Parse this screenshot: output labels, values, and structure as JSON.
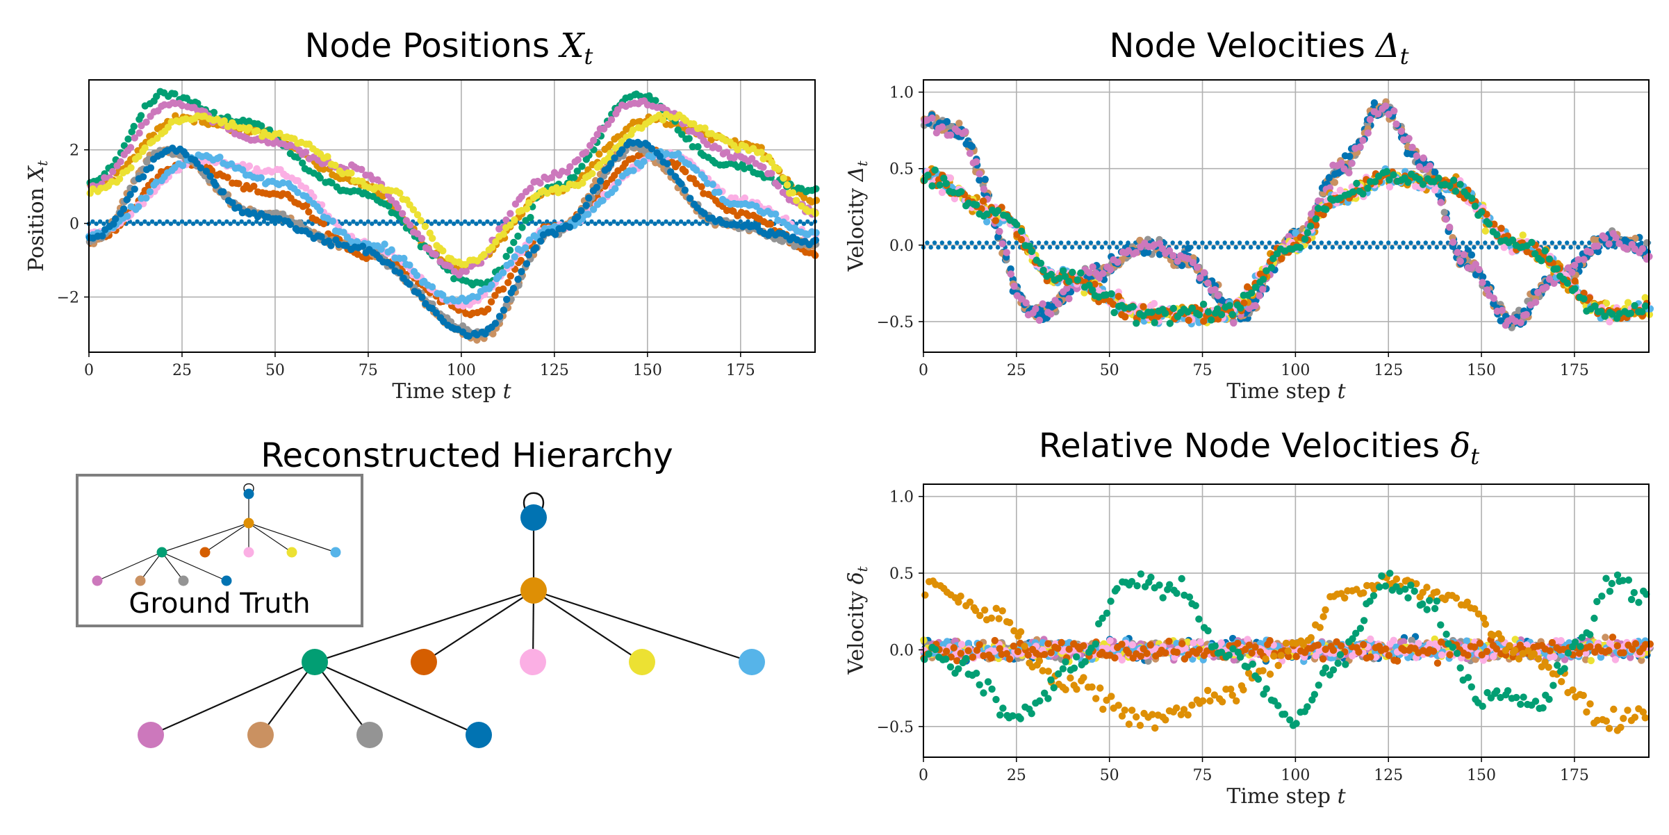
{
  "colors": {
    "blue": "#0173B2",
    "orange": "#DE8F05",
    "green": "#029E73",
    "red": "#D55E00",
    "pink": "#CC78BC",
    "brown": "#CA9161",
    "lightpink": "#FBAFE4",
    "gray": "#949494",
    "yellow": "#ECE133",
    "skyblue": "#56B4E9"
  },
  "chart_data": [
    {
      "id": "positions",
      "type": "scatter",
      "title": "Node Positions",
      "title_var": "X",
      "title_sub": "t",
      "xlabel": "Time step",
      "xlabel_var": "t",
      "ylabel": "Position",
      "ylabel_var": "X",
      "ylabel_sub": "t",
      "xlim": [
        0,
        195
      ],
      "ylim": [
        -3.5,
        3.9
      ],
      "xticks": [
        0,
        25,
        50,
        75,
        100,
        125,
        150,
        175
      ],
      "yticks": [
        -2,
        0,
        2
      ],
      "ytick_labels": [
        "−2",
        "0",
        "2"
      ],
      "grid": true,
      "x": "0..195 step 1",
      "series": [
        {
          "name": "root",
          "color": "#0173B2",
          "note": "constant at 0 (line of dots)"
        },
        {
          "name": "orange",
          "color": "#DE8F05",
          "peaks": [
            {
              "x": 25,
              "y": 2.85
            },
            {
              "x": 150,
              "y": 2.85
            }
          ],
          "trough": {
            "x": 100,
            "y": -1.2
          }
        },
        {
          "name": "green",
          "color": "#029E73",
          "peaks": [
            {
              "x": 20,
              "y": 3.5
            },
            {
              "x": 147,
              "y": 3.5
            }
          ],
          "trough": {
            "x": 105,
            "y": -1.65
          }
        },
        {
          "name": "red",
          "color": "#D55E00",
          "peaks": [
            {
              "x": 25,
              "y": 1.6
            },
            {
              "x": 150,
              "y": 1.9
            }
          ],
          "trough": {
            "x": 103,
            "y": -2.45
          }
        },
        {
          "name": "pink",
          "color": "#CC78BC",
          "peaks": [
            {
              "x": 22,
              "y": 3.3
            },
            {
              "x": 148,
              "y": 3.3
            }
          ],
          "trough": {
            "x": 100,
            "y": -1.3
          }
        },
        {
          "name": "brown",
          "color": "#CA9161",
          "peaks": [
            {
              "x": 20,
              "y": 2.0
            },
            {
              "x": 145,
              "y": 2.1
            }
          ],
          "trough": {
            "x": 105,
            "y": -3.1
          }
        },
        {
          "name": "lightpink",
          "color": "#FBAFE4",
          "peaks": [
            {
              "x": 30,
              "y": 1.7
            },
            {
              "x": 155,
              "y": 1.9
            }
          ],
          "trough": {
            "x": 100,
            "y": -2.2
          }
        },
        {
          "name": "gray",
          "color": "#949494",
          "peaks": [
            {
              "x": 20,
              "y": 2.0
            },
            {
              "x": 147,
              "y": 2.1
            }
          ],
          "trough": {
            "x": 105,
            "y": -3.0
          }
        },
        {
          "name": "yellow",
          "color": "#ECE133",
          "peaks": [
            {
              "x": 28,
              "y": 2.9
            },
            {
              "x": 155,
              "y": 2.9
            }
          ],
          "trough": {
            "x": 100,
            "y": -1.1
          }
        },
        {
          "name": "skyblue",
          "color": "#56B4E9",
          "peaks": [
            {
              "x": 30,
              "y": 1.8
            },
            {
              "x": 155,
              "y": 1.9
            }
          ],
          "trough": {
            "x": 100,
            "y": -2.1
          }
        },
        {
          "name": "blue2",
          "color": "#0173B2",
          "peaks": [
            {
              "x": 22,
              "y": 2.0
            },
            {
              "x": 147,
              "y": 2.2
            }
          ],
          "trough": {
            "x": 104,
            "y": -3.05
          }
        }
      ]
    },
    {
      "id": "velocities",
      "type": "scatter",
      "title": "Node Velocities",
      "title_var": "Δ",
      "title_sub": "t",
      "xlabel": "Time step",
      "xlabel_var": "t",
      "ylabel": "Velocity",
      "ylabel_var": "Δ",
      "ylabel_sub": "t",
      "xlim": [
        0,
        195
      ],
      "ylim": [
        -0.7,
        1.08
      ],
      "xticks": [
        0,
        25,
        50,
        75,
        100,
        125,
        150,
        175
      ],
      "yticks": [
        -0.5,
        0.0,
        0.5,
        1.0
      ],
      "ytick_labels": [
        "−0.5",
        "0.0",
        "0.5",
        "1.0"
      ],
      "grid": true,
      "series_summary": "root constant at 0.0; green-group nodes ~0.8 at t=0, down to -0.45 at t~30, up to 0.9 at t~123, down to -0.5 at t~158; orange-group nodes ~0.45 at t=0, -0.45 at t~60, 0.45 at t~125, -0.45 at t~185"
    },
    {
      "id": "relative",
      "type": "scatter",
      "title": "Relative Node Velocities",
      "title_var": "δ",
      "title_sub": "t",
      "xlabel": "Time step",
      "xlabel_var": "t",
      "ylabel": "Velocity",
      "ylabel_var": "δ",
      "ylabel_sub": "t",
      "xlim": [
        0,
        195
      ],
      "ylim": [
        -0.7,
        1.08
      ],
      "xticks": [
        0,
        25,
        50,
        75,
        100,
        125,
        150,
        175
      ],
      "yticks": [
        -0.5,
        0.0,
        0.5,
        1.0
      ],
      "ytick_labels": [
        "−0.5",
        "0.0",
        "0.5",
        "1.0"
      ],
      "grid": true,
      "series_summary": "root constant at 0.0; most nodes scattered around 0 (±0.1); orange ~0.45 at t=0 and t~125, ~-0.45 at t~60 and t~185; green ~0.45 at t~60 and t~185, ~-0.45 at t~25 and t~100"
    }
  ],
  "hierarchy": {
    "title": "Reconstructed Hierarchy",
    "inset_label": "Ground Truth",
    "nodes": [
      {
        "id": "root",
        "color": "#0173B2",
        "self_loop": true
      },
      {
        "id": "n1",
        "color": "#DE8F05",
        "parent": "root"
      },
      {
        "id": "n2",
        "color": "#029E73",
        "parent": "n1"
      },
      {
        "id": "n3",
        "color": "#D55E00",
        "parent": "n1"
      },
      {
        "id": "n4",
        "color": "#FBAFE4",
        "parent": "n1"
      },
      {
        "id": "n5",
        "color": "#ECE133",
        "parent": "n1"
      },
      {
        "id": "n6",
        "color": "#56B4E9",
        "parent": "n1"
      },
      {
        "id": "n7",
        "color": "#CC78BC",
        "parent": "n2"
      },
      {
        "id": "n8",
        "color": "#CA9161",
        "parent": "n2"
      },
      {
        "id": "n9",
        "color": "#949494",
        "parent": "n2"
      },
      {
        "id": "n10",
        "color": "#0173B2",
        "parent": "n2"
      }
    ]
  }
}
